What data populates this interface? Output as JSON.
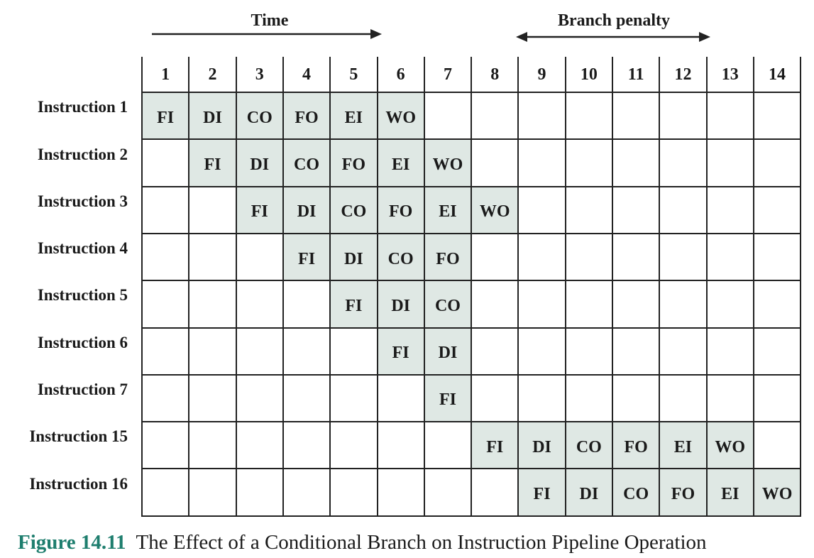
{
  "header": {
    "time_label": "Time",
    "penalty_label": "Branch penalty"
  },
  "columns": [
    "1",
    "2",
    "3",
    "4",
    "5",
    "6",
    "7",
    "8",
    "9",
    "10",
    "11",
    "12",
    "13",
    "14"
  ],
  "rows": [
    {
      "label": "Instruction 1",
      "start": 1,
      "stages": [
        "FI",
        "DI",
        "CO",
        "FO",
        "EI",
        "WO"
      ]
    },
    {
      "label": "Instruction 2",
      "start": 2,
      "stages": [
        "FI",
        "DI",
        "CO",
        "FO",
        "EI",
        "WO"
      ]
    },
    {
      "label": "Instruction 3",
      "start": 3,
      "stages": [
        "FI",
        "DI",
        "CO",
        "FO",
        "EI",
        "WO"
      ]
    },
    {
      "label": "Instruction 4",
      "start": 4,
      "stages": [
        "FI",
        "DI",
        "CO",
        "FO"
      ]
    },
    {
      "label": "Instruction 5",
      "start": 5,
      "stages": [
        "FI",
        "DI",
        "CO"
      ]
    },
    {
      "label": "Instruction 6",
      "start": 6,
      "stages": [
        "FI",
        "DI"
      ]
    },
    {
      "label": "Instruction 7",
      "start": 7,
      "stages": [
        "FI"
      ]
    },
    {
      "label": "Instruction 15",
      "start": 8,
      "stages": [
        "FI",
        "DI",
        "CO",
        "FO",
        "EI",
        "WO"
      ]
    },
    {
      "label": "Instruction 16",
      "start": 9,
      "stages": [
        "FI",
        "DI",
        "CO",
        "FO",
        "EI",
        "WO"
      ]
    }
  ],
  "colors": {
    "filled_cell": "#dfe8e4",
    "grid_line": "#222222",
    "figure_label": "#1e7e6e"
  },
  "caption": {
    "figure_label": "Figure 14.11",
    "text": "The Effect of a Conditional Branch on Instruction Pipeline Operation"
  }
}
